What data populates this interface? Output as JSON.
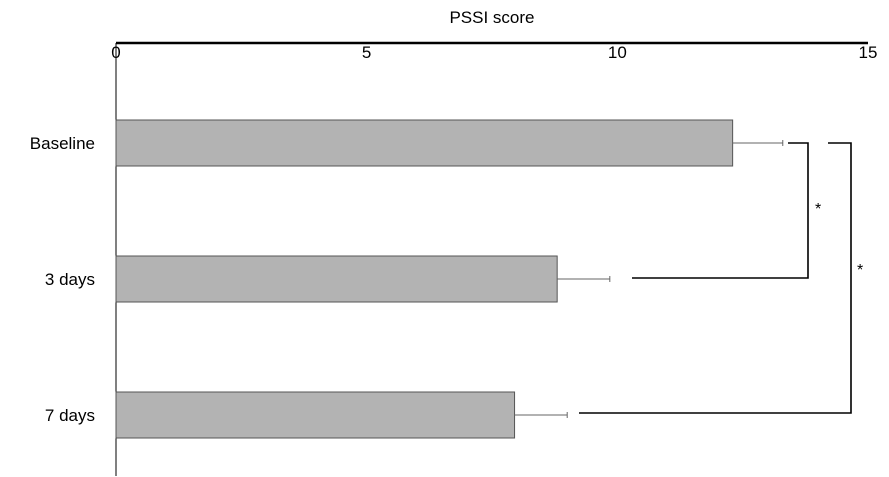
{
  "chart_data": {
    "type": "bar",
    "orientation": "horizontal",
    "xlabel": "PSSI score",
    "xaxis_position": "top",
    "xlim": [
      0,
      15
    ],
    "xticks": [
      0,
      5,
      10,
      15
    ],
    "xtick_labels": [
      "0",
      "5",
      "10",
      "15"
    ],
    "categories": [
      "Baseline",
      "3 days",
      "7 days"
    ],
    "values": [
      12.3,
      8.8,
      7.95
    ],
    "errors": [
      1.0,
      1.05,
      1.05
    ],
    "bar_color": "#b3b3b3",
    "grid": false,
    "significance": [
      {
        "between": [
          "Baseline",
          "3 days"
        ],
        "label": "*"
      },
      {
        "between": [
          "Baseline",
          "7 days"
        ],
        "label": "*"
      }
    ]
  }
}
